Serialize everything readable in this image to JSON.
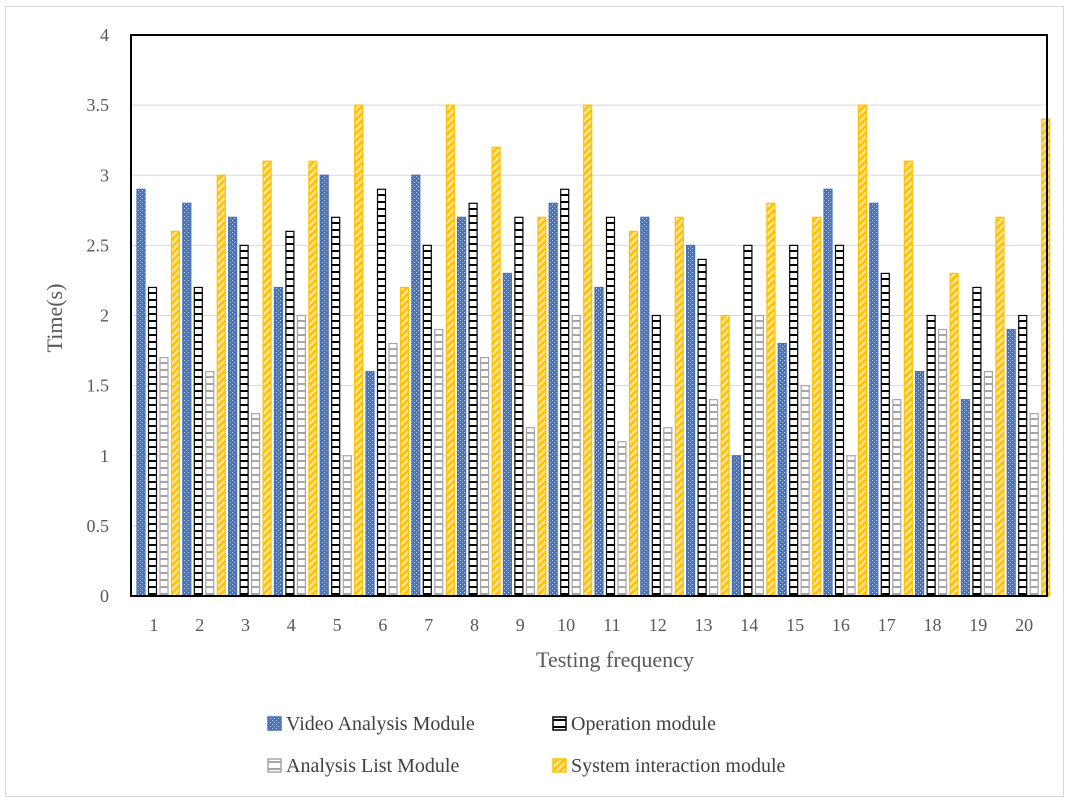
{
  "chart_data": {
    "type": "bar",
    "xlabel": "Testing frequency",
    "ylabel": "Time(s)",
    "ylim": [
      0,
      4
    ],
    "yticks": [
      "0",
      "0.5",
      "1",
      "1.5",
      "2",
      "2.5",
      "3",
      "3.5",
      "4"
    ],
    "grid": true,
    "legend_position": "bottom",
    "categories": [
      "1",
      "2",
      "3",
      "4",
      "5",
      "6",
      "7",
      "8",
      "9",
      "10",
      "11",
      "12",
      "13",
      "14",
      "15",
      "16",
      "17",
      "18",
      "19",
      "20"
    ],
    "series": [
      {
        "name": "Video Analysis Module",
        "color": "#4472c4",
        "values": [
          2.9,
          2.8,
          2.7,
          2.2,
          3.0,
          1.6,
          3.0,
          2.7,
          2.3,
          2.8,
          2.2,
          2.7,
          2.5,
          1.0,
          1.8,
          2.9,
          2.8,
          1.6,
          1.4,
          1.9
        ]
      },
      {
        "name": "Operation module",
        "color": "#000000",
        "values": [
          2.2,
          2.2,
          2.5,
          2.6,
          2.7,
          2.9,
          2.5,
          2.8,
          2.7,
          2.9,
          2.7,
          2.0,
          2.4,
          2.5,
          2.5,
          2.5,
          2.3,
          2.0,
          2.2,
          2.0
        ]
      },
      {
        "name": "Analysis List Module",
        "color": "#a5a5a5",
        "values": [
          1.7,
          1.6,
          1.3,
          2.0,
          1.0,
          1.8,
          1.9,
          1.7,
          1.2,
          2.0,
          1.1,
          1.2,
          1.4,
          2.0,
          1.5,
          1.0,
          1.4,
          1.9,
          1.6,
          1.3
        ]
      },
      {
        "name": "System interaction module",
        "color": "#ffc000",
        "values": [
          2.6,
          3.0,
          3.1,
          3.1,
          3.5,
          2.2,
          3.5,
          3.2,
          2.7,
          3.5,
          2.6,
          2.7,
          2.0,
          2.8,
          2.7,
          3.5,
          3.1,
          2.3,
          2.7,
          3.4
        ]
      }
    ]
  }
}
